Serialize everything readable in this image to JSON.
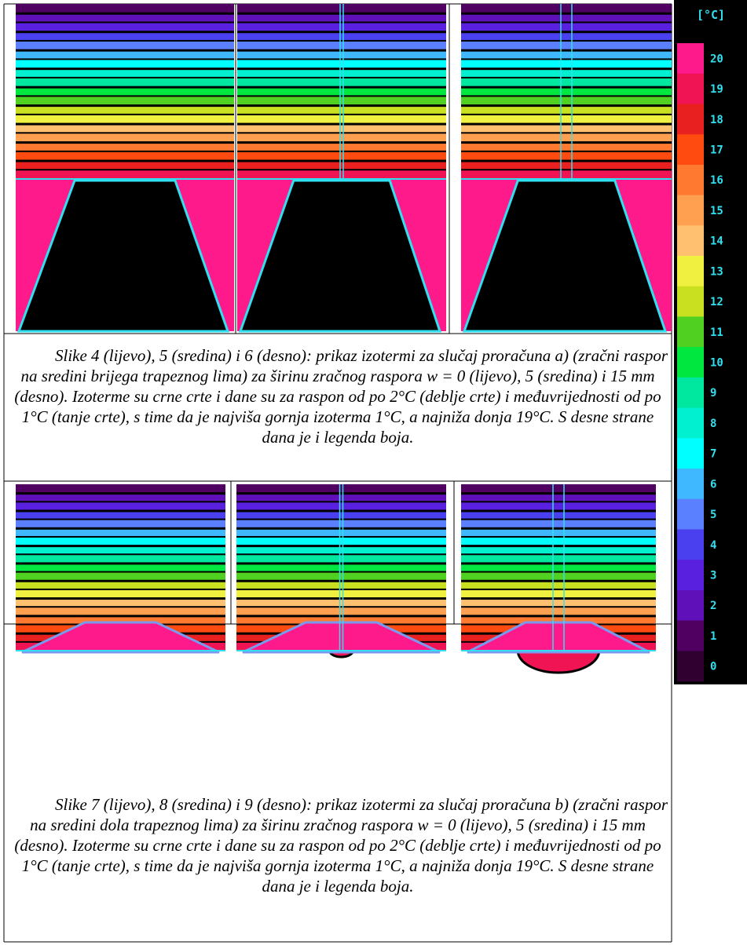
{
  "legend": {
    "title": "[°C]",
    "labels": [
      "20",
      "19",
      "18",
      "17",
      "16",
      "15",
      "14",
      "13",
      "12",
      "11",
      "10",
      "9",
      "8",
      "7",
      "6",
      "5",
      "4",
      "3",
      "2",
      "1",
      "0"
    ],
    "colors": [
      "#ff1a8c",
      "#f01455",
      "#e8201f",
      "#ff4a10",
      "#ff7a30",
      "#ffa050",
      "#ffc070",
      "#f0f040",
      "#c8e020",
      "#50d020",
      "#00e840",
      "#00e8a0",
      "#00f0d0",
      "#00ffff",
      "#40b8ff",
      "#5a80ff",
      "#4a40f0",
      "#5a20e0",
      "#6010b8",
      "#500060",
      "#300030"
    ]
  },
  "captions": [
    "Slike 4 (lijevo), 5 (sredina) i 6 (desno): prikaz izotermi za slučaj proračuna a) (zračni raspor na sredini brijega trapeznog lima) za širinu zračnog raspora w = 0 (lijevo), 5 (sredina) i 15 mm (desno). Izoterme su crne crte i dane su za raspon od po 2°C (deblje crte) i međuvrijednosti od po 1°C (tanje crte), s time da je najviša gornja izoterma 1°C, a najniža donja 19°C. S desne strane dana je i legenda boja.",
    "Slike 7 (lijevo), 8 (sredina) i 9 (desno): prikaz izotermi za slučaj proračuna b) (zračni raspor na sredini dola trapeznog lima) za širinu zračnog raspora w = 0 (lijevo), 5 (sredina) i 15 mm (desno). Izoterme su crne crte i dane su za raspon od po 2°C (deblje crte) i međuvrijednosti od po 1°C (tanje crte), s time da je najviša gornja izoterma 1°C, a najniža donja 19°C. S desne strane dana je i legenda boja."
  ]
}
